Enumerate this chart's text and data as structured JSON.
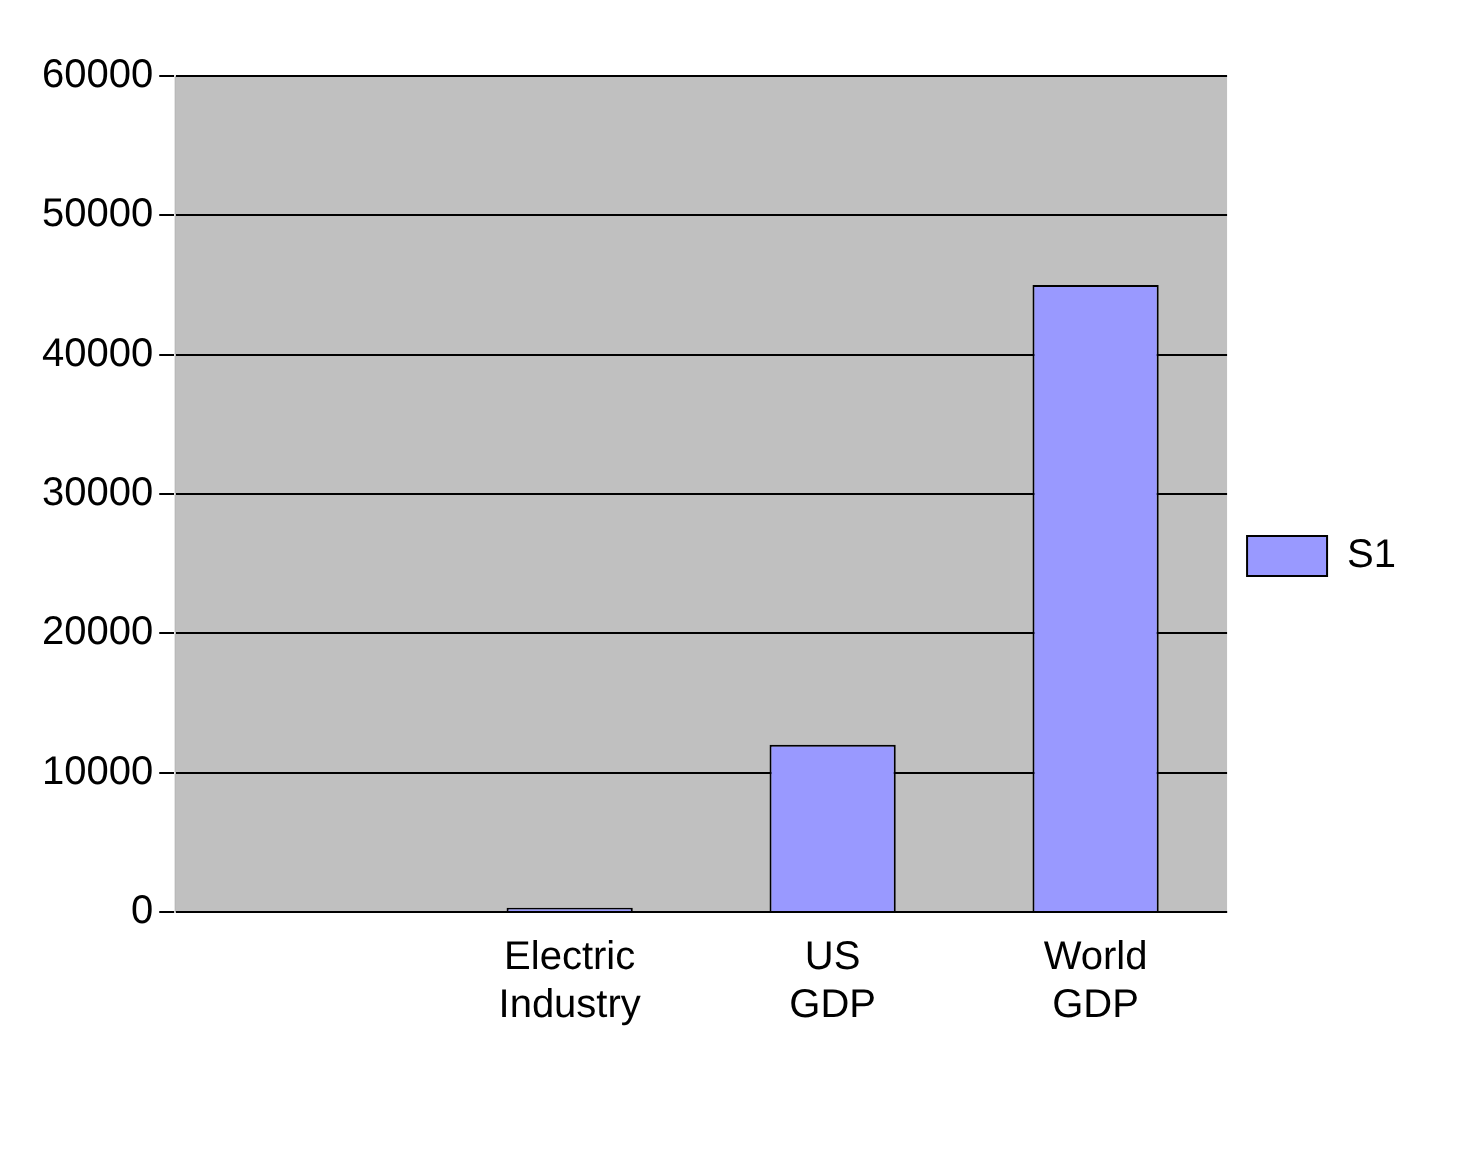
{
  "chart_data": {
    "type": "bar",
    "categories": [
      null,
      "Electric Industry",
      "US GDP",
      "World GDP"
    ],
    "series": [
      {
        "name": "S1",
        "color": "#9999ff",
        "values": [
          0,
          300,
          12000,
          45000
        ]
      }
    ],
    "ylim": [
      0,
      60000
    ],
    "yticks": [
      0,
      10000,
      20000,
      30000,
      40000,
      50000,
      60000
    ],
    "grid": "y",
    "legend": "right"
  }
}
